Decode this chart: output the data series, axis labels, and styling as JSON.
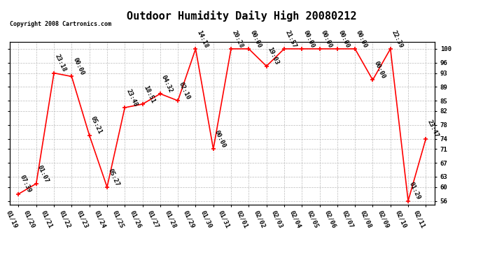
{
  "title": "Outdoor Humidity Daily High 20080212",
  "copyright": "Copyright 2008 Cartronics.com",
  "x_labels": [
    "01/19",
    "01/20",
    "01/21",
    "01/22",
    "01/23",
    "01/24",
    "01/25",
    "01/26",
    "01/27",
    "01/28",
    "01/29",
    "01/30",
    "01/31",
    "02/01",
    "02/02",
    "02/03",
    "02/04",
    "02/05",
    "02/06",
    "02/07",
    "02/08",
    "02/09",
    "02/10",
    "02/11"
  ],
  "y_values": [
    58,
    61,
    93,
    92,
    75,
    60,
    83,
    84,
    87,
    85,
    100,
    71,
    100,
    100,
    95,
    100,
    100,
    100,
    100,
    100,
    91,
    100,
    56,
    74
  ],
  "point_labels": [
    "07:39",
    "01:07",
    "23:18",
    "00:00",
    "05:21",
    "05:27",
    "23:48",
    "18:51",
    "04:32",
    "02:10",
    "14:18",
    "00:00",
    "20:28",
    "00:00",
    "19:03",
    "21:57",
    "00:00",
    "00:00",
    "00:00",
    "00:00",
    "00:00",
    "22:39",
    "01:29",
    "23:47"
  ],
  "y_ticks": [
    56,
    60,
    63,
    67,
    71,
    74,
    78,
    82,
    85,
    89,
    93,
    96,
    100
  ],
  "ylim": [
    55,
    102
  ],
  "line_color": "#ff0000",
  "marker_color": "#ff0000",
  "grid_color": "#bbbbbb",
  "bg_color": "#ffffff",
  "title_fontsize": 11,
  "label_fontsize": 6.5,
  "copyright_fontsize": 6
}
